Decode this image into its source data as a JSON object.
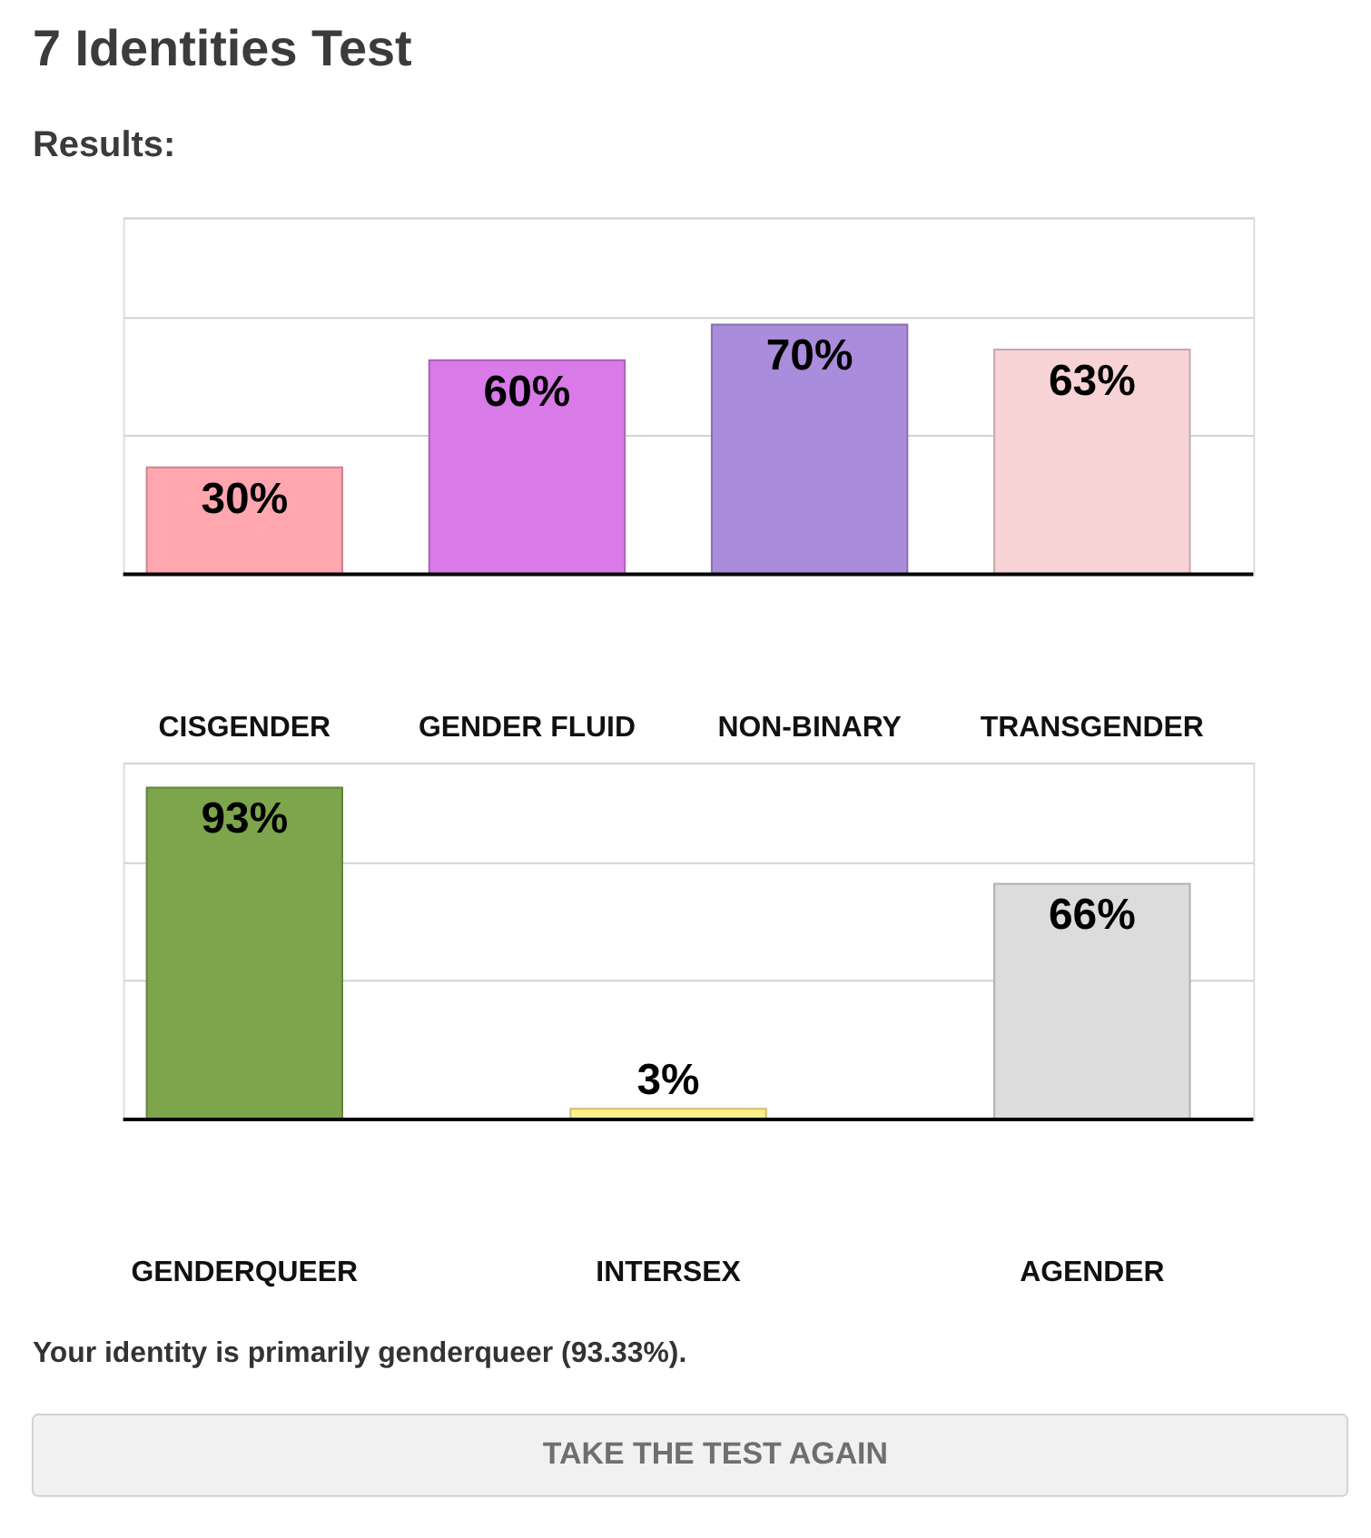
{
  "chart_data": [
    {
      "type": "bar",
      "title": "7 Identities Test",
      "subtitle": "Results:",
      "categories": [
        "CISGENDER",
        "GENDER FLUID",
        "NON-BINARY",
        "TRANSGENDER"
      ],
      "values": [
        30,
        60,
        70,
        63
      ],
      "value_labels": [
        "30%",
        "60%",
        "70%",
        "63%"
      ],
      "colors": [
        "#ffa6ae",
        "#d97ae9",
        "#a98cdb",
        "#f8d3d6"
      ],
      "ylim": [
        0,
        100
      ],
      "yticks": [
        {
          "value": 39,
          "label": null
        },
        {
          "value": 72,
          "label": null
        },
        {
          "value": 100,
          "label": null
        }
      ],
      "grid": "y",
      "tick_labels": "x"
    },
    {
      "type": "bar",
      "categories": [
        "GENDERQUEER",
        "INTERSEX",
        "AGENDER"
      ],
      "values": [
        93,
        3,
        66
      ],
      "value_labels": [
        "93%",
        "3%",
        "66%"
      ],
      "colors": [
        "#7da54c",
        "#fff08a",
        "#dcdcdc"
      ],
      "ylim": [
        0,
        100
      ],
      "yticks": [
        {
          "value": 39,
          "label": null
        },
        {
          "value": 72,
          "label": null
        },
        {
          "value": 100,
          "label": null
        }
      ],
      "grid": "y",
      "tick_labels": "x",
      "annotations": [
        "Your identity is primarily genderqueer (93.33%).",
        "TAKE THE TEST AGAIN"
      ]
    }
  ]
}
